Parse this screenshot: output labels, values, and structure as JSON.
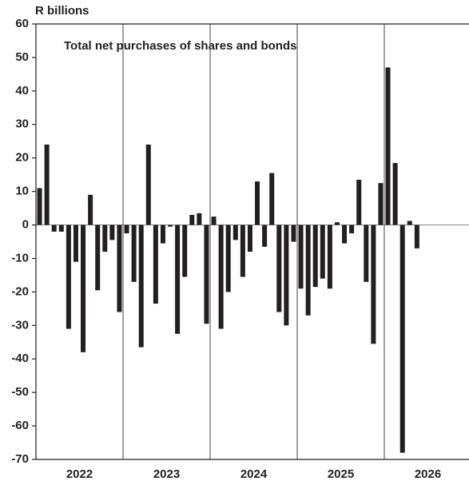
{
  "chart_data": {
    "type": "bar",
    "title": "Total net purchases of  shares and bonds",
    "y_axis_label": "R billions",
    "years": [
      "2022",
      "2023",
      "2024",
      "2025",
      "2026"
    ],
    "categories": [
      null,
      null,
      null,
      null,
      null,
      null,
      null,
      null,
      null,
      null,
      null,
      null,
      null,
      null,
      null,
      null,
      null,
      null,
      null,
      null,
      null,
      null,
      null,
      null,
      null,
      null,
      null,
      null,
      null,
      null,
      null,
      null,
      null,
      null,
      null,
      null,
      null,
      null,
      null,
      null,
      null,
      null,
      null,
      null,
      null,
      null,
      null,
      null,
      null,
      null,
      null,
      null,
      null
    ],
    "values": [
      11,
      24,
      -2,
      -2,
      -31,
      -11,
      -38,
      9,
      -19.5,
      -8,
      -4.5,
      -26,
      -2.5,
      -17,
      -36.5,
      24,
      -23.5,
      -5.5,
      -0.5,
      -32.5,
      -15.5,
      3,
      3.5,
      -29.5,
      2.5,
      -31,
      -20,
      -4.5,
      -15.5,
      -8,
      13,
      -6.5,
      15.5,
      -26,
      -30,
      -5,
      -19,
      -27,
      -18.5,
      -16,
      -19,
      0.8,
      -5.5,
      -2.5,
      13.5,
      -17,
      -35.5,
      12.5,
      47,
      18.5,
      -68,
      1.2,
      -7
    ],
    "color": "#231f20",
    "ylim": [
      -70,
      60
    ],
    "yticks": [
      -70,
      -60,
      -50,
      -40,
      -30,
      -20,
      -10,
      0,
      10,
      20,
      30,
      40,
      50,
      60
    ]
  }
}
